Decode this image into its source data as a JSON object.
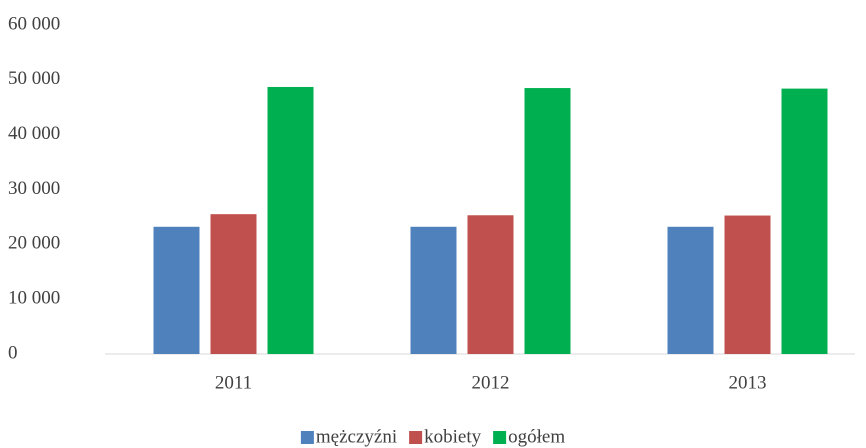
{
  "chart_data": {
    "type": "bar",
    "categories": [
      "2011",
      "2012",
      "2013"
    ],
    "series": [
      {
        "name": "mężczyźni",
        "color": "#4f81bd",
        "values": [
          23200,
          23200,
          23200
        ]
      },
      {
        "name": "kobiety",
        "color": "#c0504d",
        "values": [
          25500,
          25300,
          25250
        ]
      },
      {
        "name": "ogółem",
        "color": "#00b050",
        "values": [
          48700,
          48500,
          48400
        ]
      }
    ],
    "ylim": [
      0,
      60000
    ],
    "yticks": [
      0,
      {
        "value": 10000,
        "label": "10 000"
      },
      {
        "value": 20000,
        "label": "20 000"
      },
      {
        "value": 30000,
        "label": "30 000"
      },
      {
        "value": 40000,
        "label": "40 000"
      },
      {
        "value": 50000,
        "label": "50 000"
      },
      {
        "value": 60000,
        "label": "60 000"
      }
    ],
    "grid": false,
    "legend": "bottom"
  }
}
